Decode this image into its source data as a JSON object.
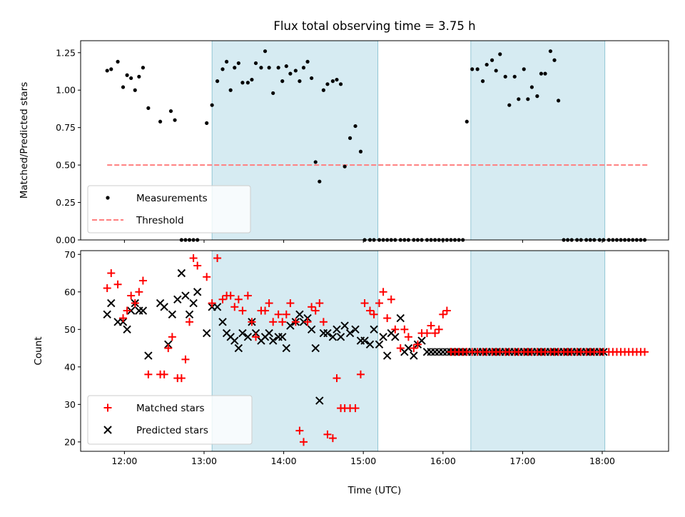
{
  "chart_data": [
    {
      "type": "scatter",
      "title": "Flux total observing time = 3.75 h",
      "xlabel": "",
      "ylabel": "Matched/Predicted stars",
      "xlim": [
        "11:27",
        "18:50"
      ],
      "ylim": [
        0,
        1.33
      ],
      "x_ticks": [
        "12:00",
        "13:00",
        "14:00",
        "15:00",
        "16:00",
        "17:00",
        "18:00"
      ],
      "y_ticks": [
        "0.00",
        "0.25",
        "0.50",
        "0.75",
        "1.00",
        "1.25"
      ],
      "shaded_intervals": [
        [
          "13:06",
          "15:11"
        ],
        [
          "16:21",
          "18:02"
        ]
      ],
      "threshold": {
        "name": "Threshold",
        "value": 0.5,
        "x_range": [
          "11:47",
          "18:35"
        ],
        "color": "#ff7f7f"
      },
      "series": [
        {
          "name": "Measurements",
          "marker": "dot",
          "color": "#000000",
          "x": [
            "11:47",
            "11:50",
            "11:55",
            "11:59",
            "12:02",
            "12:05",
            "12:08",
            "12:11",
            "12:14",
            "12:18",
            "12:27",
            "12:35",
            "12:38",
            "12:43",
            "12:46",
            "12:49",
            "12:52",
            "12:55",
            "13:02",
            "13:06",
            "13:10",
            "13:14",
            "13:17",
            "13:20",
            "13:23",
            "13:26",
            "13:29",
            "13:33",
            "13:36",
            "13:39",
            "13:43",
            "13:46",
            "13:49",
            "13:52",
            "13:56",
            "13:59",
            "14:02",
            "14:05",
            "14:09",
            "14:12",
            "14:15",
            "14:18",
            "14:21",
            "14:24",
            "14:27",
            "14:30",
            "14:33",
            "14:37",
            "14:40",
            "14:43",
            "14:46",
            "14:50",
            "14:54",
            "14:58",
            "15:01",
            "15:05",
            "15:08",
            "15:12",
            "15:15",
            "15:18",
            "15:21",
            "15:24",
            "15:28",
            "15:31",
            "15:34",
            "15:38",
            "15:41",
            "15:44",
            "15:48",
            "15:51",
            "15:54",
            "15:57",
            "16:00",
            "16:03",
            "16:06",
            "16:09",
            "16:12",
            "16:15",
            "16:18",
            "16:22",
            "16:26",
            "16:30",
            "16:33",
            "16:37",
            "16:40",
            "16:43",
            "16:47",
            "16:50",
            "16:54",
            "16:57",
            "17:01",
            "17:04",
            "17:07",
            "17:11",
            "17:14",
            "17:17",
            "17:21",
            "17:24",
            "17:27",
            "17:31",
            "17:34",
            "17:37",
            "17:41",
            "17:44",
            "17:48",
            "17:51",
            "17:54",
            "17:58",
            "18:01",
            "18:05",
            "18:08",
            "18:11",
            "18:14",
            "18:17",
            "18:20",
            "18:23",
            "18:26",
            "18:29",
            "18:32"
          ],
          "y": [
            1.13,
            1.14,
            1.19,
            1.02,
            1.1,
            1.08,
            1.0,
            1.09,
            1.15,
            0.88,
            0.79,
            0.86,
            0.8,
            0.0,
            0.0,
            0.0,
            0.0,
            0.0,
            0.78,
            0.9,
            1.06,
            1.14,
            1.19,
            1.0,
            1.15,
            1.18,
            1.05,
            1.05,
            1.07,
            1.18,
            1.15,
            1.26,
            1.15,
            0.98,
            1.15,
            1.06,
            1.16,
            1.11,
            1.13,
            1.06,
            1.15,
            1.19,
            1.08,
            0.52,
            0.39,
            1.0,
            1.04,
            1.06,
            1.07,
            1.04,
            0.49,
            0.68,
            0.76,
            0.59,
            0.0,
            0.0,
            0.0,
            0.0,
            0.0,
            0.0,
            0.0,
            0.0,
            0.0,
            0.0,
            0.0,
            0.0,
            0.0,
            0.0,
            0.0,
            0.0,
            0.0,
            0.0,
            0.0,
            0.0,
            0.0,
            0.0,
            0.0,
            0.0,
            0.79,
            1.14,
            1.14,
            1.06,
            1.17,
            1.2,
            1.13,
            1.24,
            1.09,
            0.9,
            1.09,
            0.94,
            1.14,
            0.94,
            1.02,
            0.96,
            1.11,
            1.11,
            1.26,
            1.2,
            0.93,
            0.0,
            0.0,
            0.0,
            0.0,
            0.0,
            0.0,
            0.0,
            0.0,
            0.0,
            0.0,
            0.0,
            0.0,
            0.0,
            0.0,
            0.0,
            0.0,
            0.0,
            0.0,
            0.0,
            0.0
          ]
        }
      ],
      "legend": {
        "position": "lower-left",
        "entries": [
          "Measurements",
          "Threshold"
        ]
      }
    },
    {
      "type": "scatter",
      "title": "",
      "xlabel": "Time (UTC)",
      "ylabel": "Count",
      "xlim": [
        "11:27",
        "18:50"
      ],
      "ylim": [
        17.5,
        71
      ],
      "x_ticks": [
        "12:00",
        "13:00",
        "14:00",
        "15:00",
        "16:00",
        "17:00",
        "18:00"
      ],
      "y_ticks": [
        "20",
        "30",
        "40",
        "50",
        "60",
        "70"
      ],
      "shaded_intervals": [
        [
          "13:06",
          "15:11"
        ],
        [
          "16:21",
          "18:02"
        ]
      ],
      "series": [
        {
          "name": "Matched stars",
          "marker": "plus",
          "color": "#ff0000",
          "x": [
            "11:47",
            "11:50",
            "11:55",
            "11:59",
            "12:02",
            "12:05",
            "12:08",
            "12:11",
            "12:14",
            "12:18",
            "12:27",
            "12:30",
            "12:33",
            "12:36",
            "12:40",
            "12:43",
            "12:46",
            "12:49",
            "12:52",
            "12:55",
            "13:02",
            "13:06",
            "13:10",
            "13:14",
            "13:17",
            "13:20",
            "13:23",
            "13:26",
            "13:29",
            "13:33",
            "13:36",
            "13:39",
            "13:43",
            "13:46",
            "13:49",
            "13:52",
            "13:56",
            "13:59",
            "14:02",
            "14:05",
            "14:09",
            "14:12",
            "14:15",
            "14:18",
            "14:21",
            "14:24",
            "14:27",
            "14:30",
            "14:33",
            "14:37",
            "14:40",
            "14:43",
            "14:46",
            "14:50",
            "14:54",
            "14:58",
            "15:01",
            "15:05",
            "15:08",
            "15:12",
            "15:15",
            "15:18",
            "15:21",
            "15:24",
            "15:28",
            "15:31",
            "15:34",
            "15:38",
            "15:41",
            "15:44",
            "15:48",
            "15:51",
            "15:54",
            "15:57",
            "16:00",
            "16:03",
            "16:06",
            "16:09",
            "16:12",
            "16:15",
            "16:18",
            "16:22",
            "16:26",
            "16:30",
            "16:33",
            "16:37",
            "16:40",
            "16:43",
            "16:47",
            "16:50",
            "16:54",
            "16:57",
            "17:01",
            "17:04",
            "17:07",
            "17:11",
            "17:14",
            "17:17",
            "17:21",
            "17:24",
            "17:27",
            "17:31",
            "17:34",
            "17:37",
            "17:41",
            "17:44",
            "17:48",
            "17:51",
            "17:54",
            "17:58",
            "18:01",
            "18:05",
            "18:08",
            "18:11",
            "18:14",
            "18:17",
            "18:20",
            "18:23",
            "18:26",
            "18:29",
            "18:32"
          ],
          "y": [
            61,
            65,
            62,
            53,
            55,
            59,
            57,
            60,
            63,
            38,
            38,
            38,
            45,
            48,
            37,
            37,
            42,
            52,
            69,
            67,
            64,
            57,
            69,
            58,
            59,
            59,
            56,
            58,
            55,
            59,
            52,
            48,
            55,
            55,
            57,
            52,
            54,
            52,
            54,
            57,
            52,
            23,
            20,
            52,
            56,
            55,
            57,
            52,
            22,
            21,
            37,
            29,
            29,
            29,
            29,
            38,
            57,
            55,
            54,
            57,
            60,
            53,
            58,
            50,
            45,
            50,
            48,
            45,
            46,
            49,
            49,
            51,
            49,
            50,
            54,
            55,
            44,
            44,
            44,
            44,
            44,
            44,
            44,
            44,
            44,
            44,
            44,
            44,
            44,
            44,
            44,
            44,
            44,
            44,
            44,
            44,
            44,
            44,
            44,
            44,
            44,
            44,
            44,
            44,
            44,
            44,
            44,
            44,
            44,
            44,
            44,
            44,
            44,
            44,
            44,
            44,
            44,
            44,
            44,
            44,
            44
          ]
        },
        {
          "name": "Predicted stars",
          "marker": "x",
          "color": "#000000",
          "x": [
            "11:47",
            "11:50",
            "11:55",
            "11:59",
            "12:02",
            "12:05",
            "12:08",
            "12:11",
            "12:14",
            "12:18",
            "12:27",
            "12:30",
            "12:33",
            "12:36",
            "12:40",
            "12:43",
            "12:46",
            "12:49",
            "12:52",
            "12:55",
            "13:02",
            "13:06",
            "13:10",
            "13:14",
            "13:17",
            "13:20",
            "13:23",
            "13:26",
            "13:29",
            "13:33",
            "13:36",
            "13:39",
            "13:43",
            "13:46",
            "13:49",
            "13:52",
            "13:56",
            "13:59",
            "14:02",
            "14:05",
            "14:09",
            "14:12",
            "14:15",
            "14:18",
            "14:21",
            "14:24",
            "14:27",
            "14:30",
            "14:33",
            "14:37",
            "14:40",
            "14:43",
            "14:46",
            "14:50",
            "14:54",
            "14:58",
            "15:01",
            "15:05",
            "15:08",
            "15:12",
            "15:15",
            "15:18",
            "15:21",
            "15:24",
            "15:28",
            "15:31",
            "15:34",
            "15:38",
            "15:41",
            "15:44",
            "15:48",
            "15:51",
            "15:54",
            "15:57",
            "16:00",
            "16:03",
            "16:06",
            "16:09",
            "16:12",
            "16:15",
            "16:18",
            "16:22",
            "16:26",
            "16:30",
            "16:33",
            "16:37",
            "16:40",
            "16:43",
            "16:47",
            "16:50",
            "16:54",
            "16:57",
            "17:01",
            "17:04",
            "17:07",
            "17:11",
            "17:14",
            "17:17",
            "17:21",
            "17:24",
            "17:27",
            "17:31",
            "17:34",
            "17:37",
            "17:41",
            "17:44",
            "17:48",
            "17:51",
            "17:54",
            "17:58",
            "18:01"
          ],
          "y": [
            54,
            57,
            52,
            52,
            50,
            55,
            57,
            55,
            55,
            43,
            57,
            56,
            46,
            54,
            58,
            65,
            59,
            54,
            57,
            60,
            49,
            56,
            56,
            52,
            49,
            48,
            47,
            45,
            49,
            48,
            52,
            49,
            47,
            48,
            49,
            47,
            48,
            48,
            45,
            51,
            52,
            54,
            52,
            53,
            50,
            45,
            31,
            49,
            49,
            48,
            50,
            48,
            51,
            49,
            50,
            47,
            47,
            46,
            50,
            46,
            48,
            43,
            49,
            48,
            53,
            44,
            45,
            43,
            46,
            47,
            44,
            44,
            44,
            44,
            44,
            44,
            44,
            44,
            44,
            44,
            44,
            44,
            44,
            44,
            44,
            44,
            44,
            44,
            44,
            44,
            44,
            44,
            44,
            44,
            44,
            44,
            44,
            44,
            44,
            44,
            44,
            44,
            44,
            44,
            44,
            44,
            44,
            44,
            44,
            44,
            44
          ]
        }
      ],
      "legend": {
        "position": "lower-left",
        "entries": [
          "Matched stars",
          "Predicted stars"
        ]
      }
    }
  ]
}
